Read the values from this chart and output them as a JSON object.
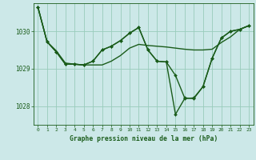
{
  "background_color": "#cce8e8",
  "grid_color": "#99ccbb",
  "line_color": "#1a5c1a",
  "marker_color": "#1a5c1a",
  "title": "Graphe pression niveau de la mer (hPa)",
  "hours": [
    0,
    1,
    2,
    3,
    4,
    5,
    6,
    7,
    8,
    9,
    10,
    11,
    12,
    13,
    14,
    15,
    16,
    17,
    18,
    19,
    20,
    21,
    22,
    23
  ],
  "ylim": [
    1027.5,
    1030.75
  ],
  "yticks": [
    1028,
    1029,
    1030
  ],
  "series": [
    {
      "y": [
        1030.65,
        1029.72,
        1029.48,
        1029.15,
        1029.12,
        1029.1,
        1029.1,
        1029.1,
        1029.2,
        1029.35,
        1029.55,
        1029.65,
        1029.62,
        1029.6,
        1029.58,
        1029.55,
        1029.52,
        1029.5,
        1029.5,
        1029.52,
        1029.7,
        1029.85,
        1030.05,
        1030.15
      ],
      "marker": false,
      "lw": 1.0
    },
    {
      "y": [
        1030.65,
        1029.72,
        1029.45,
        1029.12,
        1029.12,
        1029.1,
        1029.2,
        1029.5,
        1029.6,
        1029.75,
        1029.95,
        1030.1,
        1029.5,
        1029.2,
        1029.18,
        1028.82,
        1028.22,
        1028.2,
        1028.52,
        1029.28,
        1029.82,
        1030.0,
        1030.05,
        1030.15
      ],
      "marker": true,
      "lw": 1.0
    },
    {
      "y": [
        1030.65,
        1029.72,
        1029.45,
        1029.12,
        1029.12,
        1029.1,
        1029.2,
        1029.5,
        1029.6,
        1029.75,
        1029.95,
        1030.1,
        1029.5,
        1029.2,
        1029.18,
        1027.78,
        1028.2,
        1028.22,
        1028.52,
        1029.28,
        1029.82,
        1030.0,
        1030.05,
        1030.15
      ],
      "marker": true,
      "lw": 1.0
    }
  ]
}
